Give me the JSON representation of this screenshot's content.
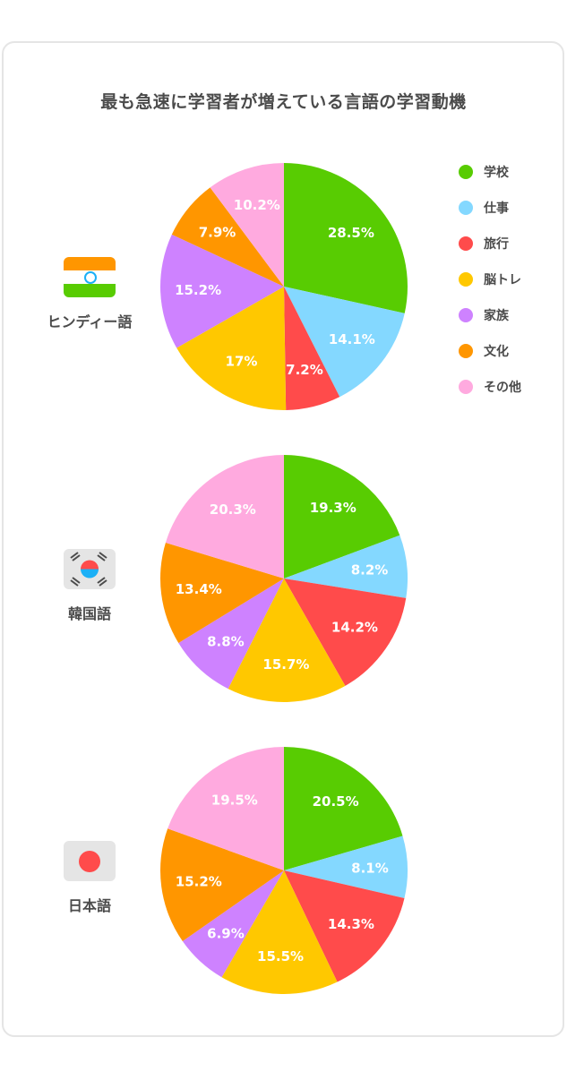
{
  "title": "最も急速に学習者が増えている言語の学習動機",
  "legend": [
    {
      "label": "学校",
      "color": "#58cc02",
      "icon": "green-dot-icon"
    },
    {
      "label": "仕事",
      "color": "#84d8ff",
      "icon": "lightblue-dot-icon"
    },
    {
      "label": "旅行",
      "color": "#ff4b4b",
      "icon": "red-dot-icon"
    },
    {
      "label": "脳トレ",
      "color": "#ffc800",
      "icon": "yellow-dot-icon"
    },
    {
      "label": "家族",
      "color": "#ce82ff",
      "icon": "purple-dot-icon"
    },
    {
      "label": "文化",
      "color": "#ff9600",
      "icon": "orange-dot-icon"
    },
    {
      "label": "その他",
      "color": "#ffaadf",
      "icon": "pink-dot-icon"
    }
  ],
  "languages": [
    {
      "name": "ヒンディー語",
      "flag": "india-flag-icon"
    },
    {
      "name": "韓国語",
      "flag": "korea-flag-icon"
    },
    {
      "name": "日本語",
      "flag": "japan-flag-icon"
    }
  ],
  "chart_data": [
    {
      "type": "pie",
      "categories": [
        "学校",
        "仕事",
        "旅行",
        "脳トレ",
        "家族",
        "文化",
        "その他"
      ],
      "values": [
        28.5,
        14.1,
        7.2,
        17,
        15.2,
        7.9,
        10.2
      ],
      "labels": [
        "28.5%",
        "14.1%",
        "7.2%",
        "17%",
        "15.2%",
        "7.9%",
        "10.2%"
      ],
      "title": "",
      "legend": "right"
    },
    {
      "type": "pie",
      "categories": [
        "学校",
        "仕事",
        "旅行",
        "脳トレ",
        "家族",
        "文化",
        "その他"
      ],
      "values": [
        19.3,
        8.2,
        14.2,
        15.7,
        8.8,
        13.4,
        20.3
      ],
      "labels": [
        "19.3%",
        "8.2%",
        "14.2%",
        "15.7%",
        "8.8%",
        "13.4%",
        "20.3%"
      ],
      "title": "",
      "legend": "right"
    },
    {
      "type": "pie",
      "categories": [
        "学校",
        "仕事",
        "旅行",
        "脳トレ",
        "家族",
        "文化",
        "その他"
      ],
      "values": [
        20.5,
        8.1,
        14.3,
        15.5,
        6.9,
        15.2,
        19.5
      ],
      "labels": [
        "20.5%",
        "8.1%",
        "14.3%",
        "15.5%",
        "6.9%",
        "15.2%",
        "19.5%"
      ],
      "title": "",
      "legend": "right"
    }
  ]
}
